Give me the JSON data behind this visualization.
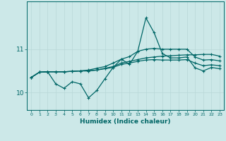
{
  "background_color": "#cce8e8",
  "grid_color": "#b8d8d8",
  "line_color": "#006666",
  "x_label": "Humidex (Indice chaleur)",
  "xlim": [
    -0.5,
    23.5
  ],
  "ylim": [
    9.6,
    12.1
  ],
  "yticks": [
    10,
    11
  ],
  "xticks": [
    0,
    1,
    2,
    3,
    4,
    5,
    6,
    7,
    8,
    9,
    10,
    11,
    12,
    13,
    14,
    15,
    16,
    17,
    18,
    19,
    20,
    21,
    22,
    23
  ],
  "line_flat_top": [
    10.35,
    10.47,
    10.48,
    10.48,
    10.48,
    10.49,
    10.5,
    10.5,
    10.52,
    10.56,
    10.6,
    10.68,
    10.72,
    10.76,
    10.8,
    10.82,
    10.84,
    10.85,
    10.86,
    10.87,
    10.87,
    10.88,
    10.88,
    10.84
  ],
  "line_flat_mid": [
    10.35,
    10.47,
    10.48,
    10.48,
    10.48,
    10.49,
    10.5,
    10.5,
    10.52,
    10.55,
    10.58,
    10.65,
    10.68,
    10.72,
    10.75,
    10.76,
    10.75,
    10.75,
    10.75,
    10.76,
    10.68,
    10.62,
    10.64,
    10.62
  ],
  "line_diagonal": [
    10.35,
    10.47,
    10.48,
    10.48,
    10.48,
    10.49,
    10.5,
    10.52,
    10.56,
    10.6,
    10.68,
    10.77,
    10.83,
    10.95,
    11.0,
    11.02,
    11.0,
    11.0,
    11.0,
    11.0,
    10.82,
    10.75,
    10.76,
    10.73
  ],
  "line_spiky": [
    10.35,
    10.47,
    10.48,
    10.2,
    10.1,
    10.25,
    10.2,
    9.88,
    10.05,
    10.32,
    10.58,
    10.77,
    10.65,
    10.95,
    11.72,
    11.38,
    10.9,
    10.8,
    10.8,
    10.82,
    10.57,
    10.5,
    10.58,
    10.55
  ],
  "marker_size": 2.5,
  "linewidth": 0.9
}
